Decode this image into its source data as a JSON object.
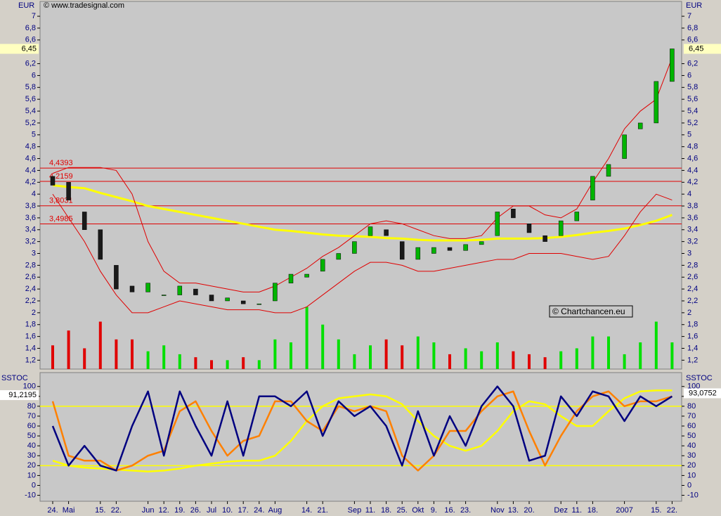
{
  "chart_data": [
    {
      "type": "candlestick",
      "source": "© www.tradesignal.com",
      "watermark": "© Chartchancen.eu",
      "axis_label": "EUR",
      "open": [
        4.3,
        4.2,
        3.7,
        3.4,
        2.8,
        2.45,
        2.35,
        2.3,
        2.3,
        2.4,
        2.3,
        2.2,
        2.2,
        2.15,
        2.2,
        2.5,
        2.6,
        2.7,
        2.9,
        3.0,
        3.3,
        3.4,
        3.2,
        2.9,
        3.0,
        3.1,
        3.05,
        3.15,
        3.3,
        3.75,
        3.5,
        3.3,
        3.3,
        3.55,
        3.9,
        4.3,
        4.6,
        5.1,
        5.2,
        5.9
      ],
      "close": [
        4.15,
        3.9,
        3.4,
        2.9,
        2.4,
        2.35,
        2.5,
        2.3,
        2.45,
        2.3,
        2.2,
        2.25,
        2.15,
        2.15,
        2.5,
        2.65,
        2.65,
        2.9,
        3.0,
        3.2,
        3.45,
        3.3,
        2.9,
        3.1,
        3.1,
        3.05,
        3.15,
        3.2,
        3.7,
        3.6,
        3.35,
        3.2,
        3.55,
        3.7,
        4.3,
        4.5,
        5.0,
        5.2,
        5.9,
        6.45
      ],
      "volume": [
        1.45,
        1.7,
        1.4,
        1.85,
        1.55,
        1.55,
        1.35,
        1.45,
        1.3,
        1.25,
        1.2,
        1.2,
        1.25,
        1.2,
        1.55,
        1.5,
        2.1,
        1.8,
        1.55,
        1.3,
        1.45,
        1.55,
        1.45,
        1.6,
        1.5,
        1.3,
        1.4,
        1.35,
        1.5,
        1.35,
        1.3,
        1.25,
        1.35,
        1.4,
        1.6,
        1.6,
        1.3,
        1.5,
        1.85,
        1.5
      ],
      "up_color": "#00b400",
      "down_color": "#1a1a1a",
      "volume_up_color": "#00e000",
      "volume_down_color": "#e00000",
      "series": [
        {
          "color": "#ffff00",
          "values": [
            4.15,
            4.12,
            4.1,
            4.02,
            3.95,
            3.88,
            3.8,
            3.75,
            3.7,
            3.65,
            3.6,
            3.55,
            3.5,
            3.45,
            3.4,
            3.38,
            3.35,
            3.32,
            3.3,
            3.29,
            3.28,
            3.26,
            3.25,
            3.23,
            3.22,
            3.22,
            3.22,
            3.23,
            3.25,
            3.25,
            3.25,
            3.26,
            3.28,
            3.31,
            3.35,
            3.38,
            3.42,
            3.48,
            3.55,
            3.65
          ]
        },
        {
          "color": "#e00000",
          "values": [
            4.35,
            4.45,
            4.45,
            4.45,
            4.4,
            4.0,
            3.2,
            2.7,
            2.5,
            2.5,
            2.45,
            2.4,
            2.35,
            2.35,
            2.45,
            2.6,
            2.75,
            2.95,
            3.1,
            3.3,
            3.5,
            3.55,
            3.5,
            3.4,
            3.3,
            3.25,
            3.25,
            3.3,
            3.6,
            3.8,
            3.8,
            3.65,
            3.6,
            3.75,
            4.2,
            4.6,
            5.1,
            5.4,
            5.6,
            6.3
          ]
        },
        {
          "color": "#e00000",
          "values": [
            4.0,
            3.6,
            3.2,
            2.7,
            2.3,
            2.0,
            2.0,
            2.1,
            2.2,
            2.15,
            2.1,
            2.05,
            2.05,
            2.05,
            2.0,
            2.0,
            2.1,
            2.3,
            2.5,
            2.7,
            2.85,
            2.85,
            2.8,
            2.7,
            2.7,
            2.75,
            2.8,
            2.85,
            2.9,
            2.9,
            3.0,
            3.0,
            3.0,
            2.95,
            2.9,
            2.95,
            3.3,
            3.7,
            4.0,
            3.9
          ]
        }
      ],
      "levels": [
        {
          "value": 4.4393,
          "label": "4,4393"
        },
        {
          "value": 4.2159,
          "label": "4,2159"
        },
        {
          "value": 3.8031,
          "label": "3,8031"
        },
        {
          "value": 3.4985,
          "label": "3,4985"
        }
      ],
      "last": {
        "value": 6.45,
        "label": "6,45"
      },
      "ylim": [
        1.05,
        7.25
      ],
      "yticks": [
        {
          "value": 1.2,
          "label": "1,2"
        },
        {
          "value": 1.4,
          "label": "1,4"
        },
        {
          "value": 1.6,
          "label": "1,6"
        },
        {
          "value": 1.8,
          "label": "1,8"
        },
        2,
        {
          "value": 2.2,
          "label": "2,2"
        },
        {
          "value": 2.4,
          "label": "2,4"
        },
        {
          "value": 2.6,
          "label": "2,6"
        },
        {
          "value": 2.8,
          "label": "2,8"
        },
        3,
        {
          "value": 3.2,
          "label": "3,2"
        },
        {
          "value": 3.4,
          "label": "3,4"
        },
        {
          "value": 3.6,
          "label": "3,6"
        },
        {
          "value": 3.8,
          "label": "3,8"
        },
        4,
        {
          "value": 4.2,
          "label": "4,2"
        },
        {
          "value": 4.4,
          "label": "4,4"
        },
        {
          "value": 4.6,
          "label": "4,6"
        },
        {
          "value": 4.8,
          "label": "4,8"
        },
        5,
        {
          "value": 5.2,
          "label": "5,2"
        },
        {
          "value": 5.4,
          "label": "5,4"
        },
        {
          "value": 5.6,
          "label": "5,6"
        },
        {
          "value": 5.8,
          "label": "5,8"
        },
        6,
        {
          "value": 6.2,
          "label": "6,2"
        },
        {
          "value": 6.6,
          "label": "6,6"
        },
        {
          "value": 6.8,
          "label": "6,8"
        },
        7
      ]
    },
    {
      "type": "line",
      "axis_label": "SSTOC",
      "categories": [
        "24.",
        "Mai",
        null,
        "15.",
        "22.",
        null,
        "Jun",
        "12.",
        "19.",
        "26.",
        "Jul",
        "10.",
        "17.",
        "24.",
        "Aug",
        null,
        "14.",
        "21.",
        null,
        "Sep",
        "11.",
        "18.",
        "25.",
        "Okt",
        "9.",
        "16.",
        "23.",
        null,
        "Nov",
        "13.",
        "20.",
        null,
        "Dez",
        "11.",
        "18.",
        null,
        "2007",
        null,
        "15.",
        "22."
      ],
      "series": [
        {
          "color": "#000080",
          "values": [
            60,
            20,
            40,
            20,
            15,
            60,
            95,
            30,
            95,
            60,
            30,
            85,
            30,
            90,
            90,
            80,
            95,
            50,
            85,
            70,
            80,
            60,
            20,
            75,
            30,
            70,
            40,
            80,
            100,
            80,
            25,
            30,
            90,
            70,
            95,
            90,
            65,
            90,
            80,
            90
          ]
        },
        {
          "color": "#ff8000",
          "values": [
            85,
            30,
            25,
            25,
            15,
            20,
            30,
            35,
            75,
            85,
            55,
            30,
            45,
            50,
            85,
            85,
            65,
            55,
            80,
            75,
            80,
            75,
            30,
            15,
            30,
            55,
            55,
            75,
            90,
            95,
            55,
            20,
            50,
            75,
            90,
            95,
            80,
            85,
            85,
            90
          ]
        },
        {
          "color": "#ffff00",
          "values": [
            25,
            20,
            18,
            17,
            16,
            15,
            14,
            15,
            17,
            20,
            22,
            24,
            25,
            25,
            30,
            45,
            65,
            80,
            88,
            90,
            92,
            90,
            82,
            65,
            50,
            40,
            35,
            40,
            55,
            75,
            85,
            82,
            70,
            60,
            60,
            75,
            88,
            95,
            96,
            96
          ]
        }
      ],
      "hlines": [
        80,
        20
      ],
      "left_value": {
        "value": 91.2195,
        "label": "91,2195"
      },
      "right_value": {
        "value": 93.0752,
        "label": "93,0752"
      },
      "ylim": [
        -16,
        114
      ],
      "yticks": [
        -10,
        0,
        10,
        20,
        30,
        40,
        50,
        60,
        70,
        80,
        90,
        100
      ]
    }
  ]
}
